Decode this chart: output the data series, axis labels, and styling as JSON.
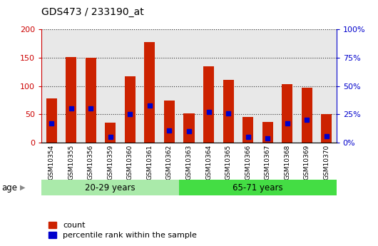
{
  "title": "GDS473 / 233190_at",
  "samples": [
    "GSM10354",
    "GSM10355",
    "GSM10356",
    "GSM10359",
    "GSM10360",
    "GSM10361",
    "GSM10362",
    "GSM10363",
    "GSM10364",
    "GSM10365",
    "GSM10366",
    "GSM10367",
    "GSM10368",
    "GSM10369",
    "GSM10370"
  ],
  "counts": [
    78,
    151,
    150,
    35,
    117,
    178,
    75,
    52,
    135,
    111,
    45,
    37,
    104,
    97,
    50
  ],
  "percentile_ranks": [
    17,
    30,
    30,
    5,
    25,
    33,
    11,
    10,
    27,
    26,
    5,
    4,
    17,
    20,
    6
  ],
  "groups": [
    {
      "label": "20-29 years",
      "start": 0,
      "end": 7,
      "color": "#aaeaaa"
    },
    {
      "label": "65-71 years",
      "start": 7,
      "end": 15,
      "color": "#44dd44"
    }
  ],
  "ylim_left": [
    0,
    200
  ],
  "ylim_right": [
    0,
    100
  ],
  "yticks_left": [
    0,
    50,
    100,
    150,
    200
  ],
  "yticks_right": [
    0,
    25,
    50,
    75,
    100
  ],
  "left_axis_color": "#CC0000",
  "right_axis_color": "#0000CC",
  "bar_color": "#CC2200",
  "dot_color": "#0000CC",
  "legend_items": [
    "count",
    "percentile rank within the sample"
  ],
  "age_label": "age",
  "plot_bg": "#e8e8e8",
  "grid_style": "dotted",
  "grid_color": "#000000"
}
